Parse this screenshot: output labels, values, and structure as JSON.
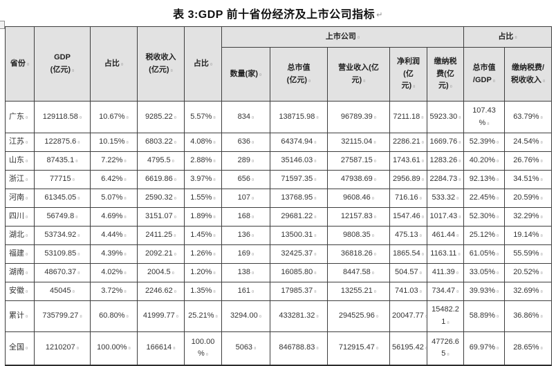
{
  "title": "表 3:GDP 前十省份经济及上市公司指标",
  "title_mark": "↵",
  "colors": {
    "header_bg": "#e2e2e2",
    "border": "#3c3c3c",
    "text": "#333333",
    "page_bg": "#ffffff"
  },
  "table": {
    "header": {
      "province": "省份",
      "gdp": "GDP\n(亿元)",
      "gdp_share": "占比",
      "tax": "税收收入\n(亿元)",
      "tax_share": "占比",
      "listed_group": "上市公司",
      "share_group": "占比",
      "count": "数量(家)",
      "market_cap": "总市值\n(亿元)",
      "revenue": "营业收入(亿\n元)",
      "net_profit": "净利润(亿\n元)",
      "tax_paid": "缴纳税\n费(亿\n元)",
      "cap_over_gdp": "总市值\n/GDP",
      "taxpaid_over_tax": "缴纳税费/\n税收收入"
    },
    "rows": [
      {
        "cells": [
          "广东",
          "129118.58",
          "10.67%",
          "9285.22",
          "5.57%",
          "834",
          "138715.98",
          "96789.39",
          "7211.18",
          "5923.30",
          "107.43\n%",
          "63.79%"
        ]
      },
      {
        "cells": [
          "江苏",
          "122875.6",
          "10.15%",
          "6803.22",
          "4.08%",
          "636",
          "64374.94",
          "32115.04",
          "2286.21",
          "1669.76",
          "52.39%",
          "24.54%"
        ]
      },
      {
        "cells": [
          "山东",
          "87435.1",
          "7.22%",
          "4795.5",
          "2.88%",
          "289",
          "35146.03",
          "27587.15",
          "1743.61",
          "1283.26",
          "40.20%",
          "26.76%"
        ]
      },
      {
        "cells": [
          "浙江",
          "77715",
          "6.42%",
          "6619.86",
          "3.97%",
          "656",
          "71597.35",
          "47938.69",
          "2956.89",
          "2284.73",
          "92.13%",
          "34.51%"
        ]
      },
      {
        "cells": [
          "河南",
          "61345.05",
          "5.07%",
          "2590.32",
          "1.55%",
          "107",
          "13768.95",
          "9608.46",
          "716.16",
          "533.32",
          "22.45%",
          "20.59%"
        ]
      },
      {
        "cells": [
          "四川",
          "56749.8",
          "4.69%",
          "3151.07",
          "1.89%",
          "168",
          "29681.22",
          "12157.83",
          "1547.46",
          "1017.43",
          "52.30%",
          "32.29%"
        ]
      },
      {
        "cells": [
          "湖北",
          "53734.92",
          "4.44%",
          "2411.25",
          "1.45%",
          "136",
          "13500.31",
          "9808.35",
          "475.13",
          "461.44",
          "25.12%",
          "19.14%"
        ]
      },
      {
        "cells": [
          "福建",
          "53109.85",
          "4.39%",
          "2092.21",
          "1.26%",
          "169",
          "32425.37",
          "36818.26",
          "1865.54",
          "1163.11",
          "61.05%",
          "55.59%"
        ]
      },
      {
        "cells": [
          "湖南",
          "48670.37",
          "4.02%",
          "2004.5",
          "1.20%",
          "138",
          "16085.80",
          "8447.58",
          "504.57",
          "411.39",
          "33.05%",
          "20.52%"
        ]
      },
      {
        "cells": [
          "安徽",
          "45045",
          "3.72%",
          "2246.62",
          "1.35%",
          "161",
          "17985.37",
          "13255.21",
          "741.03",
          "734.47",
          "39.93%",
          "32.69%"
        ]
      },
      {
        "cells": [
          "累计",
          "735799.27",
          "60.80%",
          "41999.77",
          "25.21%",
          "3294.00",
          "433281.32",
          "294525.96",
          "20047.77",
          "15482.2\n1",
          "58.89%",
          "36.86%"
        ]
      },
      {
        "cells": [
          "全国",
          "1210207",
          "100.00%",
          "166614",
          "100.00\n%",
          "5063",
          "846788.83",
          "712915.47",
          "56195.42",
          "47726.6\n5",
          "69.97%",
          "28.65%"
        ]
      }
    ]
  }
}
